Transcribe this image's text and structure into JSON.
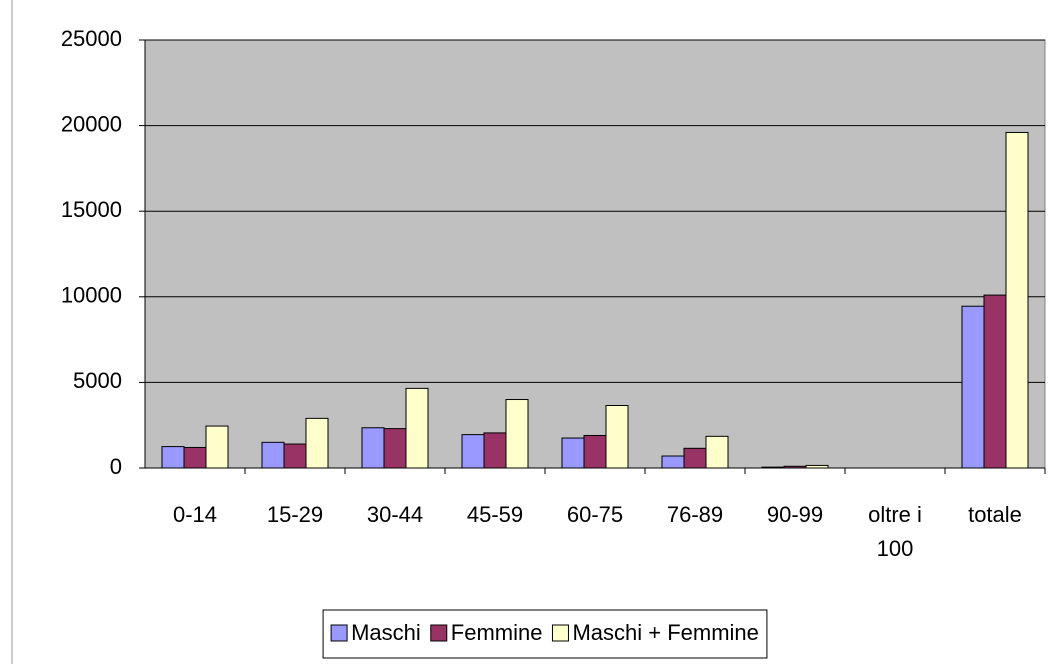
{
  "chart_data": {
    "type": "bar",
    "categories": [
      "0-14",
      "15-29",
      "30-44",
      "45-59",
      "60-75",
      "76-89",
      "90-99",
      "oltre i 100",
      "totale"
    ],
    "series": [
      {
        "name": "Maschi",
        "color": "#9999ff",
        "values": [
          1250,
          1500,
          2350,
          1950,
          1750,
          700,
          50,
          0,
          9450
        ]
      },
      {
        "name": "Femmine",
        "color": "#993366",
        "values": [
          1200,
          1400,
          2300,
          2050,
          1900,
          1150,
          100,
          0,
          10100
        ]
      },
      {
        "name": "Maschi + Femmine",
        "color": "#ffffcc",
        "values": [
          2450,
          2900,
          4650,
          4000,
          3650,
          1850,
          150,
          0,
          19600
        ]
      }
    ],
    "ylim": [
      0,
      25000
    ],
    "yticks": [
      0,
      5000,
      10000,
      15000,
      20000,
      25000
    ],
    "grid": true,
    "legend": "bottom"
  }
}
